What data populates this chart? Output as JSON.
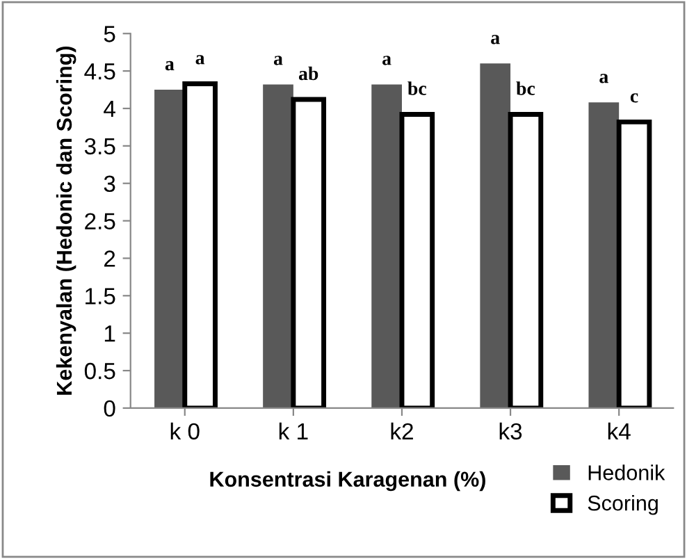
{
  "chart_data": {
    "type": "bar",
    "xlabel": "Konsentrasi Karagenan (%)",
    "ylabel": "Kekenyalan (Hedonic dan Scoring)",
    "categories": [
      "k 0",
      "k 1",
      "k2",
      "k3",
      "k4"
    ],
    "series": [
      {
        "name": "Hedonik",
        "color": "#595959",
        "values": [
          4.25,
          4.32,
          4.32,
          4.6,
          4.08
        ],
        "value_labels": [
          "a",
          "a",
          "a",
          "a",
          "a"
        ]
      },
      {
        "name": "Scoring",
        "color": "#ffffff",
        "values": [
          4.33,
          4.12,
          3.92,
          3.92,
          3.82
        ],
        "value_labels": [
          "a",
          "ab",
          "bc",
          "bc",
          "c"
        ]
      }
    ],
    "ylim": [
      0,
      5
    ],
    "yticks": [
      0,
      0.5,
      1,
      1.5,
      2,
      2.5,
      3,
      3.5,
      4,
      4.5,
      5
    ],
    "grid": false,
    "legend": "bottom right"
  }
}
